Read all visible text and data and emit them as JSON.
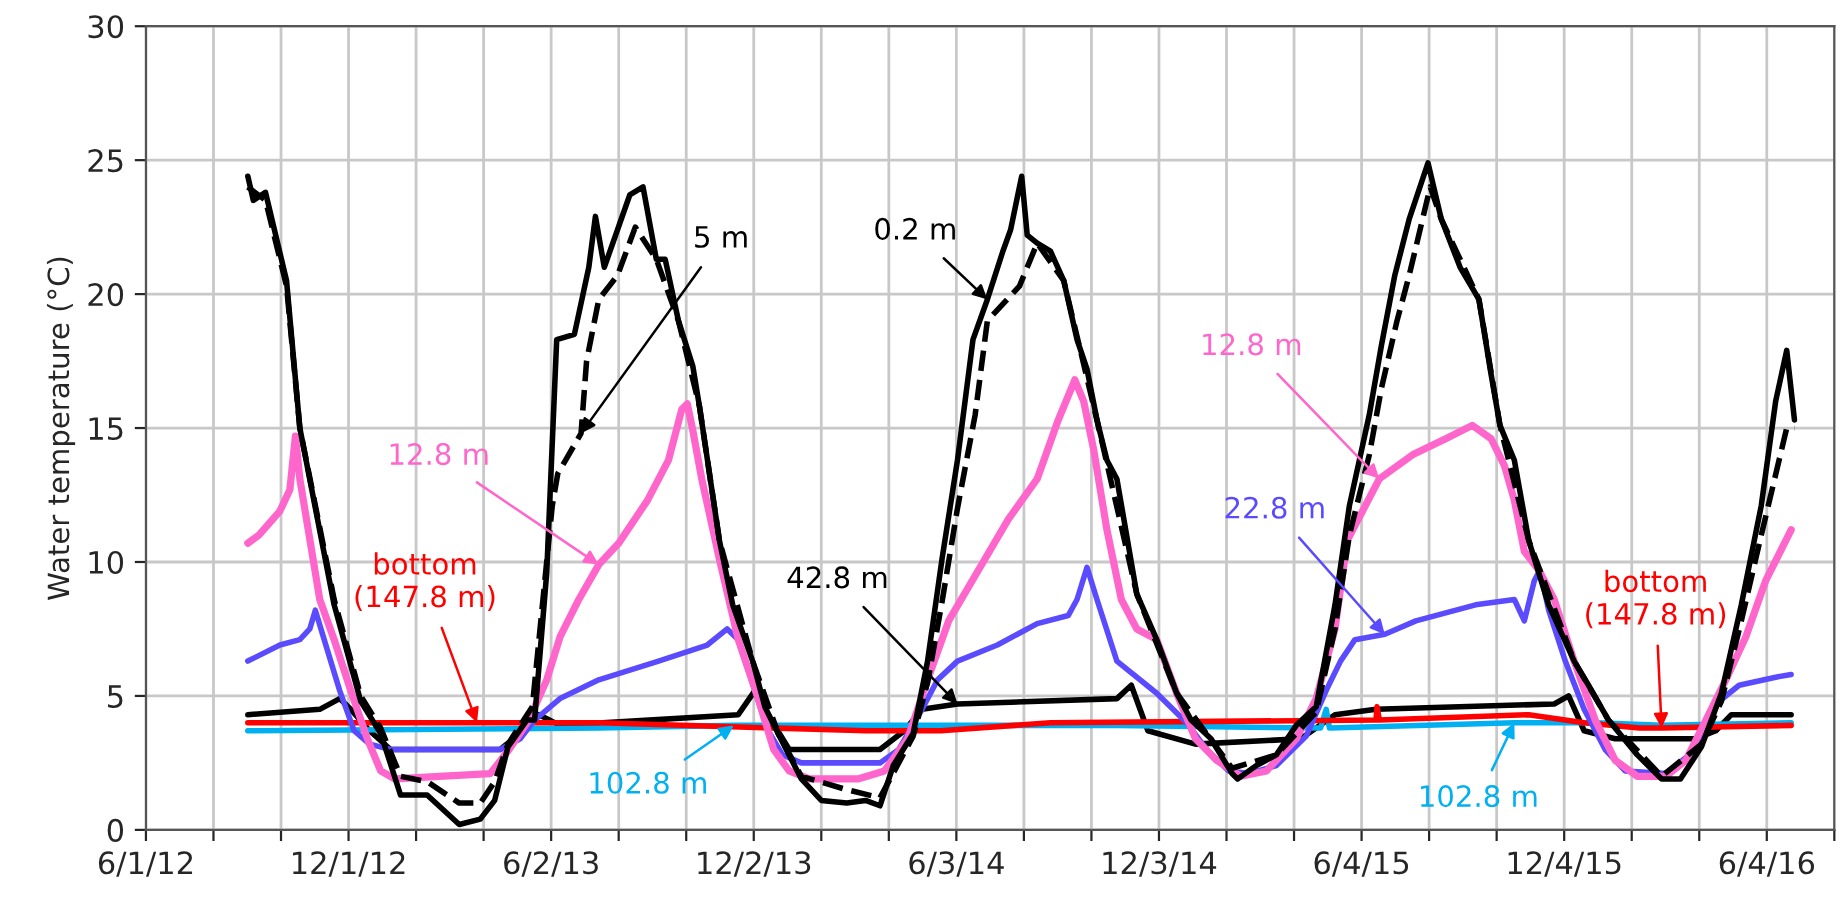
{
  "chart_data": {
    "type": "line",
    "ylabel": "Water temperature (°C)",
    "xlim": [
      "2012-06-01",
      "2016-08-04"
    ],
    "xticks": [
      {
        "value": "2012-06-01",
        "label": "6/1/12"
      },
      {
        "value": "2012-08-01",
        "label": null
      },
      {
        "value": "2012-10-01",
        "label": null
      },
      {
        "value": "2012-12-01",
        "label": "12/1/12"
      },
      {
        "value": "2013-01-31",
        "label": null
      },
      {
        "value": "2013-04-02",
        "label": null
      },
      {
        "value": "2013-06-02",
        "label": "6/2/13"
      },
      {
        "value": "2013-08-02",
        "label": null
      },
      {
        "value": "2013-10-02",
        "label": null
      },
      {
        "value": "2013-12-02",
        "label": "12/2/13"
      },
      {
        "value": "2014-02-01",
        "label": null
      },
      {
        "value": "2014-04-03",
        "label": null
      },
      {
        "value": "2014-06-03",
        "label": "6/3/14"
      },
      {
        "value": "2014-08-03",
        "label": null
      },
      {
        "value": "2014-10-03",
        "label": null
      },
      {
        "value": "2014-12-03",
        "label": "12/3/14"
      },
      {
        "value": "2015-02-02",
        "label": null
      },
      {
        "value": "2015-04-04",
        "label": null
      },
      {
        "value": "2015-06-04",
        "label": "6/4/15"
      },
      {
        "value": "2015-08-04",
        "label": null
      },
      {
        "value": "2015-10-04",
        "label": null
      },
      {
        "value": "2015-12-04",
        "label": "12/4/15"
      },
      {
        "value": "2016-02-03",
        "label": null
      },
      {
        "value": "2016-04-04",
        "label": null
      },
      {
        "value": "2016-06-04",
        "label": "6/4/16"
      },
      {
        "value": "2016-08-04",
        "label": null
      }
    ],
    "ylim": [
      0,
      30
    ],
    "yticks": [
      0,
      5,
      10,
      15,
      20,
      25,
      30
    ],
    "grid": true,
    "series": [
      {
        "name": "42.8 m",
        "color": "#000000",
        "line_style": "solid",
        "x": [
          "2012-09-01",
          "2012-11-05",
          "2012-11-23",
          "2012-12-03",
          "2012-12-20",
          "2013-01-08",
          "2013-04-17",
          "2013-05-08",
          "2013-05-22",
          "2013-06-10",
          "2013-11-18",
          "2013-12-03",
          "2013-12-12",
          "2014-01-03",
          "2014-03-26",
          "2014-04-17",
          "2014-05-03",
          "2014-06-04",
          "2014-10-26",
          "2014-11-08",
          "2014-11-23",
          "2015-01-05",
          "2015-04-10",
          "2015-05-11",
          "2015-06-17",
          "2015-11-25",
          "2015-12-08",
          "2015-12-22",
          "2016-01-19",
          "2016-04-01",
          "2016-04-19",
          "2016-05-03",
          "2016-06-26"
        ],
        "values": [
          4.3,
          4.5,
          4.9,
          4.5,
          3.7,
          3.0,
          3.0,
          3.7,
          4.3,
          3.9,
          4.3,
          5.2,
          4.5,
          3.0,
          3.0,
          3.7,
          4.5,
          4.7,
          4.9,
          5.4,
          3.7,
          3.2,
          3.4,
          4.3,
          4.5,
          4.7,
          5.0,
          3.7,
          3.4,
          3.4,
          3.7,
          4.3,
          4.3
        ]
      },
      {
        "name": "102.8 m",
        "color": "#00b0f0",
        "line_style": "solid",
        "x": [
          "2012-09-01",
          "2013-07-15",
          "2013-11-14",
          "2014-01-14",
          "2014-10-26",
          "2015-04-28",
          "2015-05-03",
          "2015-05-06",
          "2015-10-20",
          "2016-01-01",
          "2016-03-01",
          "2016-06-26"
        ],
        "values": [
          3.7,
          3.8,
          3.9,
          3.9,
          3.9,
          3.8,
          4.5,
          3.8,
          4.0,
          4.0,
          3.9,
          4.0
        ]
      },
      {
        "name": "bottom (147.8 m)",
        "color": "#ff0000",
        "line_style": "solid",
        "x": [
          "2012-09-01",
          "2013-03-27",
          "2013-07-15",
          "2014-03-13",
          "2014-05-20",
          "2014-08-27",
          "2015-06-17",
          "2015-06-18",
          "2015-06-20",
          "2015-11-02",
          "2015-12-22",
          "2016-02-10",
          "2016-03-01",
          "2016-06-26"
        ],
        "values": [
          4.0,
          4.0,
          4.0,
          3.7,
          3.7,
          4.0,
          4.1,
          4.6,
          4.1,
          4.3,
          4.0,
          3.8,
          3.8,
          3.9
        ]
      },
      {
        "name": "22.8 m",
        "color": "#5b4bff",
        "line_style": "solid",
        "x": [
          "2012-09-01",
          "2012-09-30",
          "2012-10-18",
          "2012-10-27",
          "2012-11-01",
          "2012-11-09",
          "2012-11-23",
          "2012-12-06",
          "2012-12-20",
          "2013-01-08",
          "2013-04-17",
          "2013-05-05",
          "2013-05-18",
          "2013-06-10",
          "2013-07-15",
          "2013-09-07",
          "2013-10-21",
          "2013-11-08",
          "2013-11-18",
          "2013-12-03",
          "2013-12-15",
          "2013-12-28",
          "2014-01-14",
          "2014-03-26",
          "2014-04-12",
          "2014-05-03",
          "2014-05-17",
          "2014-06-04",
          "2014-07-10",
          "2014-08-15",
          "2014-09-12",
          "2014-09-20",
          "2014-09-29",
          "2014-10-08",
          "2014-10-26",
          "2014-12-01",
          "2014-12-28",
          "2015-01-15",
          "2015-02-04",
          "2015-02-22",
          "2015-03-19",
          "2015-04-15",
          "2015-05-03",
          "2015-05-16",
          "2015-05-29",
          "2015-06-25",
          "2015-07-23",
          "2015-09-15",
          "2015-10-20",
          "2015-10-29",
          "2015-11-07",
          "2015-11-12",
          "2015-11-20",
          "2015-12-05",
          "2015-12-22",
          "2016-01-10",
          "2016-01-28",
          "2016-03-05",
          "2016-04-01",
          "2016-04-19",
          "2016-05-10",
          "2016-06-12",
          "2016-06-26"
        ],
        "values": [
          6.3,
          6.9,
          7.1,
          7.5,
          8.2,
          7.1,
          5.2,
          3.7,
          3.2,
          3.0,
          3.0,
          3.4,
          4.1,
          4.9,
          5.6,
          6.3,
          6.9,
          7.5,
          7.1,
          5.2,
          3.7,
          2.8,
          2.5,
          2.5,
          3.0,
          4.5,
          5.6,
          6.3,
          6.9,
          7.7,
          8.0,
          8.6,
          9.8,
          8.6,
          6.3,
          5.1,
          4.0,
          3.0,
          2.2,
          2.1,
          2.4,
          3.5,
          5.2,
          6.3,
          7.1,
          7.3,
          7.8,
          8.4,
          8.6,
          7.8,
          9.3,
          9.7,
          8.2,
          6.3,
          4.5,
          3.0,
          2.2,
          2.1,
          3.0,
          4.7,
          5.4,
          5.7,
          5.8
        ]
      },
      {
        "name": "12.8 m",
        "color": "#ff66cc",
        "line_style": "solid",
        "x": [
          "2012-09-01",
          "2012-09-11",
          "2012-09-30",
          "2012-10-09",
          "2012-10-14",
          "2012-10-18",
          "2012-11-05",
          "2012-11-18",
          "2012-12-03",
          "2012-12-18",
          "2012-12-30",
          "2013-01-12",
          "2013-02-21",
          "2013-04-08",
          "2013-04-25",
          "2013-05-13",
          "2013-05-29",
          "2013-06-10",
          "2013-06-27",
          "2013-07-15",
          "2013-08-02",
          "2013-08-28",
          "2013-09-16",
          "2013-09-28",
          "2013-10-03",
          "2013-10-08",
          "2013-10-16",
          "2013-11-01",
          "2013-11-18",
          "2013-12-06",
          "2013-12-20",
          "2014-01-03",
          "2014-01-21",
          "2014-03-06",
          "2014-03-30",
          "2014-04-20",
          "2014-05-08",
          "2014-05-27",
          "2014-06-23",
          "2014-07-20",
          "2014-08-15",
          "2014-09-03",
          "2014-09-18",
          "2014-09-26",
          "2014-10-05",
          "2014-10-17",
          "2014-10-30",
          "2014-11-13",
          "2014-12-01",
          "2014-12-19",
          "2015-01-05",
          "2015-01-24",
          "2015-02-15",
          "2015-03-10",
          "2015-04-06",
          "2015-04-24",
          "2015-05-11",
          "2015-05-22",
          "2015-06-20",
          "2015-07-20",
          "2015-08-19",
          "2015-09-12",
          "2015-09-29",
          "2015-10-11",
          "2015-10-20",
          "2015-10-29",
          "2015-11-11",
          "2015-11-25",
          "2015-12-13",
          "2016-01-01",
          "2016-01-19",
          "2016-02-08",
          "2016-03-05",
          "2016-03-23",
          "2016-04-10",
          "2016-04-28",
          "2016-05-16",
          "2016-06-03",
          "2016-06-26"
        ],
        "values": [
          10.7,
          11.0,
          11.9,
          12.7,
          14.7,
          13.1,
          8.6,
          7.1,
          5.2,
          3.4,
          2.2,
          1.9,
          2.0,
          2.1,
          3.0,
          4.1,
          5.6,
          7.2,
          8.6,
          9.9,
          10.7,
          12.3,
          13.8,
          15.7,
          15.9,
          14.9,
          13.1,
          10.1,
          7.1,
          4.9,
          3.0,
          2.2,
          1.9,
          1.9,
          2.2,
          3.4,
          5.6,
          7.8,
          9.7,
          11.6,
          13.1,
          15.3,
          16.8,
          16.0,
          14.2,
          11.2,
          8.6,
          7.5,
          7.1,
          5.1,
          3.4,
          2.6,
          2.0,
          2.2,
          3.4,
          4.9,
          7.5,
          10.8,
          13.1,
          14.0,
          14.6,
          15.1,
          14.6,
          13.6,
          12.3,
          10.4,
          9.7,
          8.6,
          6.3,
          4.1,
          2.6,
          2.0,
          2.0,
          2.6,
          4.1,
          5.6,
          7.2,
          9.3,
          11.2
        ]
      },
      {
        "name": "5 m",
        "color": "#000000",
        "line_style": "dashed",
        "x": [
          "2012-09-01",
          "2012-09-17",
          "2012-10-06",
          "2012-10-18",
          "2012-11-18",
          "2012-12-12",
          "2012-12-30",
          "2013-01-17",
          "2013-02-10",
          "2013-03-11",
          "2013-03-30",
          "2013-04-12",
          "2013-04-24",
          "2013-05-16",
          "2013-06-03",
          "2013-06-08",
          "2013-06-29",
          "2013-07-04",
          "2013-07-15",
          "2013-08-01",
          "2013-08-17",
          "2013-09-05",
          "2013-09-25",
          "2013-10-14",
          "2013-11-01",
          "2013-12-01",
          "2013-12-24",
          "2014-01-14",
          "2014-02-24",
          "2014-03-26",
          "2014-04-25",
          "2014-05-08",
          "2014-05-21",
          "2014-06-04",
          "2014-06-20",
          "2014-07-01",
          "2014-07-30",
          "2014-08-15",
          "2014-09-08",
          "2014-10-08",
          "2014-11-13",
          "2014-12-19",
          "2015-02-07",
          "2015-03-19",
          "2015-04-24",
          "2015-05-11",
          "2015-05-24",
          "2015-06-11",
          "2015-06-22",
          "2015-07-06",
          "2015-07-17",
          "2015-08-05",
          "2015-08-15",
          "2015-09-18",
          "2015-10-07",
          "2015-11-02",
          "2015-12-13",
          "2016-01-13",
          "2016-03-01",
          "2016-04-06",
          "2016-04-24",
          "2016-05-12",
          "2016-05-30",
          "2016-06-22",
          "2016-06-29"
        ],
        "values": [
          24.0,
          23.5,
          20.3,
          15.0,
          8.6,
          5.0,
          3.8,
          2.0,
          1.8,
          1.0,
          1.0,
          1.8,
          3.2,
          4.6,
          12.1,
          13.3,
          14.8,
          17.5,
          19.8,
          20.7,
          22.5,
          21.3,
          19.0,
          15.8,
          10.8,
          6.3,
          3.6,
          2.0,
          1.5,
          1.2,
          3.5,
          5.5,
          8.5,
          12.0,
          15.5,
          19.0,
          20.3,
          21.9,
          20.5,
          15.3,
          8.8,
          5.1,
          2.3,
          2.8,
          4.4,
          7.5,
          11.0,
          14.0,
          16.5,
          19.0,
          20.7,
          24.0,
          22.8,
          19.8,
          15.1,
          10.8,
          6.3,
          4.1,
          2.0,
          3.2,
          4.8,
          7.8,
          11.0,
          15.0,
          15.0
        ]
      },
      {
        "name": "0.2 m",
        "color": "#000000",
        "line_style": "solid",
        "x": [
          "2012-09-01",
          "2012-09-06",
          "2012-09-17",
          "2012-10-06",
          "2012-10-18",
          "2012-11-18",
          "2012-12-12",
          "2012-12-30",
          "2013-01-17",
          "2013-02-10",
          "2013-03-11",
          "2013-03-30",
          "2013-04-12",
          "2013-04-24",
          "2013-05-11",
          "2013-05-18",
          "2013-05-29",
          "2013-06-07",
          "2013-06-23",
          "2013-07-06",
          "2013-07-12",
          "2013-07-20",
          "2013-08-12",
          "2013-08-24",
          "2013-09-05",
          "2013-09-13",
          "2013-09-25",
          "2013-10-08",
          "2013-10-14",
          "2013-11-01",
          "2013-11-13",
          "2013-12-01",
          "2013-12-12",
          "2013-12-24",
          "2014-01-14",
          "2014-02-01",
          "2014-02-24",
          "2014-03-13",
          "2014-03-26",
          "2014-04-07",
          "2014-04-25",
          "2014-05-08",
          "2014-05-21",
          "2014-06-04",
          "2014-06-18",
          "2014-07-01",
          "2014-07-15",
          "2014-07-22",
          "2014-08-01",
          "2014-08-06",
          "2014-08-15",
          "2014-08-27",
          "2014-09-08",
          "2014-09-20",
          "2014-09-29",
          "2014-10-08",
          "2014-10-17",
          "2014-10-26",
          "2014-11-13",
          "2014-12-01",
          "2014-12-19",
          "2015-01-01",
          "2015-01-19",
          "2015-02-07",
          "2015-02-12",
          "2015-03-01",
          "2015-03-19",
          "2015-04-06",
          "2015-04-24",
          "2015-05-11",
          "2015-05-24",
          "2015-06-11",
          "2015-06-22",
          "2015-07-04",
          "2015-07-17",
          "2015-08-03",
          "2015-08-15",
          "2015-09-01",
          "2015-09-18",
          "2015-09-29",
          "2015-10-07",
          "2015-10-20",
          "2015-11-02",
          "2015-11-20",
          "2015-12-13",
          "2015-12-26",
          "2016-01-13",
          "2016-02-08",
          "2016-03-01",
          "2016-03-18",
          "2016-04-06",
          "2016-04-24",
          "2016-05-12",
          "2016-05-30",
          "2016-06-12",
          "2016-06-22",
          "2016-06-29"
        ],
        "values": [
          24.4,
          23.5,
          23.8,
          20.5,
          15.0,
          8.4,
          4.8,
          3.6,
          1.3,
          1.3,
          0.2,
          0.4,
          1.1,
          3.1,
          4.1,
          4.1,
          9.6,
          18.3,
          18.5,
          21.0,
          22.9,
          21.0,
          23.7,
          24.0,
          21.3,
          21.3,
          19.0,
          17.3,
          15.8,
          10.8,
          8.4,
          6.3,
          4.6,
          3.6,
          1.9,
          1.1,
          1.0,
          1.1,
          0.9,
          2.4,
          3.6,
          6.3,
          10.1,
          13.8,
          18.3,
          19.8,
          21.6,
          22.4,
          24.4,
          22.2,
          21.9,
          21.6,
          20.5,
          18.3,
          17.2,
          15.3,
          13.8,
          13.1,
          8.8,
          7.1,
          5.1,
          4.1,
          3.4,
          2.1,
          1.9,
          2.4,
          2.8,
          3.9,
          4.6,
          8.4,
          12.1,
          15.5,
          18.1,
          20.7,
          22.8,
          24.9,
          22.8,
          21.0,
          19.8,
          17.0,
          15.1,
          13.8,
          10.8,
          8.4,
          6.3,
          5.4,
          4.1,
          2.8,
          1.9,
          1.9,
          3.1,
          5.1,
          8.4,
          12.1,
          16.0,
          17.9,
          15.3
        ]
      }
    ]
  }
}
